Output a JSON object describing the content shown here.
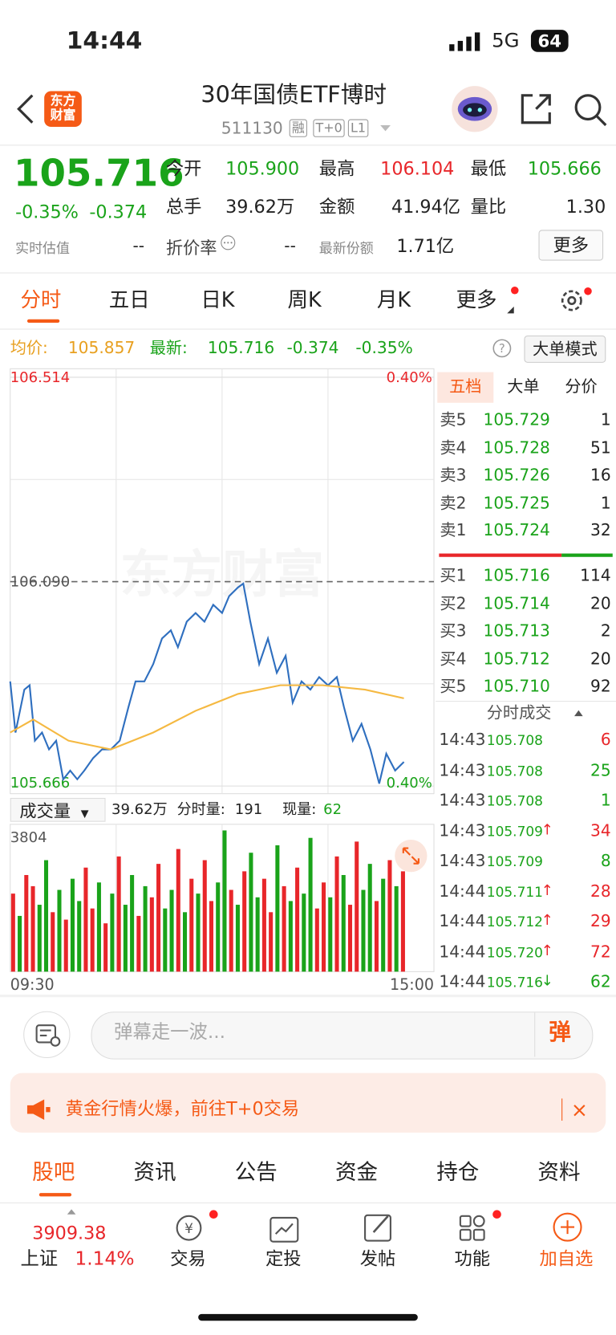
{
  "status_bar": {
    "time": "14:44",
    "network": "5G",
    "battery": "64"
  },
  "header": {
    "logo": [
      "东方",
      "财富"
    ],
    "title": "30年国债ETF博时",
    "code": "511130",
    "tags": [
      "融",
      "T+0",
      "L1"
    ]
  },
  "quote": {
    "price": "105.716",
    "change_pct": "-0.35%",
    "change": "-0.374",
    "fields": [
      {
        "label": "今开",
        "value": "105.900"
      },
      {
        "label": "最高",
        "value": "106.104"
      },
      {
        "label": "最低",
        "value": "105.666"
      },
      {
        "label": "总手",
        "value": "39.62万"
      },
      {
        "label": "金额",
        "value": "41.94亿"
      },
      {
        "label": "量比",
        "value": "1.30"
      },
      {
        "label": "实时估值",
        "value": "--"
      },
      {
        "label": "折价率",
        "value": "--"
      },
      {
        "label": "最新份额",
        "value": "1.71亿"
      }
    ],
    "more": "更多"
  },
  "tabs": [
    "分时",
    "五日",
    "日K",
    "周K",
    "月K",
    "更多"
  ],
  "info_line": {
    "avg_label": "均价:",
    "avg": "105.857",
    "latest_label": "最新:",
    "latest": "105.716",
    "change": "-0.374",
    "pct": "-0.35%",
    "mode": "大单模式"
  },
  "volume_header": {
    "label": "成交量",
    "total": "39.62万",
    "minute_label": "分时量:",
    "minute": "191",
    "current_label": "现量:",
    "current": "62"
  },
  "chart_data": [
    {
      "type": "line",
      "watermark": "东方财富",
      "xlim": [
        0,
        240
      ],
      "xticks": [
        {
          "value": 0,
          "label": "09:30"
        },
        {
          "value": 240,
          "label": "15:00"
        }
      ],
      "ylim": [
        105.666,
        106.514
      ],
      "yticks": [
        106.514,
        {
          "value": 106.09,
          "label": "106.090"
        },
        105.666
      ],
      "y2lim": [
        -0.4,
        0.4
      ],
      "y2ticks": [
        {
          "value": 0.4,
          "label": "0.40%"
        },
        {
          "value": -0.4,
          "label": "0.40%"
        }
      ],
      "grid": true,
      "series": [
        {
          "color": "#2f6fbf",
          "x": [
            0,
            3,
            8,
            11,
            14,
            18,
            22,
            26,
            30,
            34,
            38,
            42,
            47,
            52,
            57,
            62,
            67,
            71,
            76,
            81,
            86,
            91,
            95,
            100,
            105,
            110,
            115,
            120,
            124,
            129,
            132,
            136,
            141,
            146,
            151,
            156,
            160,
            165,
            170,
            175,
            180,
            185,
            189,
            194,
            199,
            204,
            209,
            213,
            218,
            223
          ],
          "values": [
            105.883,
            105.777,
            105.866,
            105.875,
            105.76,
            105.777,
            105.742,
            105.76,
            105.68,
            105.698,
            105.68,
            105.698,
            105.724,
            105.742,
            105.742,
            105.76,
            105.83,
            105.883,
            105.883,
            105.919,
            105.972,
            105.989,
            105.954,
            106.007,
            106.025,
            106.007,
            106.042,
            106.025,
            106.06,
            106.078,
            106.086,
            106.007,
            105.919,
            105.972,
            105.901,
            105.936,
            105.839,
            105.883,
            105.866,
            105.892,
            105.875,
            105.892,
            105.83,
            105.76,
            105.795,
            105.742,
            105.671,
            105.733,
            105.698,
            105.716
          ]
        },
        {
          "color": "#f5b942",
          "x": [
            0,
            13,
            33,
            57,
            81,
            105,
            129,
            153,
            177,
            201,
            223
          ],
          "values": [
            105.777,
            105.804,
            105.76,
            105.742,
            105.777,
            105.822,
            105.857,
            105.875,
            105.875,
            105.866,
            105.848
          ]
        }
      ]
    },
    {
      "type": "bar",
      "ylim": [
        0,
        3804
      ],
      "yticks": [
        3804
      ],
      "values": [
        2100,
        1500,
        2600,
        2300,
        1800,
        3000,
        1600,
        2200,
        1400,
        2500,
        1900,
        2800,
        1700,
        2400,
        1300,
        2100,
        3100,
        1800,
        2600,
        1500,
        2300,
        2000,
        2900,
        1700,
        2200,
        3300,
        1600,
        2500,
        2100,
        3000,
        1900,
        2400,
        3800,
        2200,
        1800,
        2700,
        3200,
        2000,
        2500,
        1600,
        3400,
        2300,
        1900,
        2800,
        2100,
        3600,
        1700,
        2400,
        2000,
        3100,
        2600,
        1800,
        3500,
        2200,
        2900,
        1900,
        2500,
        3000,
        2300,
        2700
      ],
      "colors": [
        "#e8262a",
        "#1aa31a",
        "#e8262a",
        "#e8262a",
        "#1aa31a",
        "#1aa31a",
        "#e8262a",
        "#1aa31a",
        "#e8262a",
        "#1aa31a",
        "#1aa31a",
        "#e8262a",
        "#e8262a",
        "#1aa31a",
        "#e8262a",
        "#1aa31a",
        "#e8262a",
        "#1aa31a",
        "#1aa31a",
        "#e8262a",
        "#1aa31a",
        "#e8262a",
        "#e8262a",
        "#1aa31a",
        "#1aa31a",
        "#e8262a",
        "#1aa31a",
        "#e8262a",
        "#1aa31a",
        "#e8262a",
        "#e8262a",
        "#1aa31a",
        "#1aa31a",
        "#e8262a",
        "#1aa31a",
        "#e8262a",
        "#1aa31a",
        "#1aa31a",
        "#e8262a",
        "#e8262a",
        "#1aa31a",
        "#e8262a",
        "#1aa31a",
        "#e8262a",
        "#1aa31a",
        "#1aa31a",
        "#e8262a",
        "#e8262a",
        "#1aa31a",
        "#e8262a",
        "#1aa31a",
        "#e8262a",
        "#e8262a",
        "#1aa31a",
        "#1aa31a",
        "#e8262a",
        "#1aa31a",
        "#e8262a",
        "#1aa31a",
        "#e8262a"
      ]
    }
  ],
  "order_book": {
    "tabs": [
      "五档",
      "大单",
      "分价"
    ],
    "asks": [
      {
        "label": "卖5",
        "price": "105.729",
        "vol": "1"
      },
      {
        "label": "卖4",
        "price": "105.728",
        "vol": "51"
      },
      {
        "label": "卖3",
        "price": "105.726",
        "vol": "16"
      },
      {
        "label": "卖2",
        "price": "105.725",
        "vol": "1"
      },
      {
        "label": "卖1",
        "price": "105.724",
        "vol": "32"
      }
    ],
    "bids": [
      {
        "label": "买1",
        "price": "105.716",
        "vol": "114"
      },
      {
        "label": "买2",
        "price": "105.714",
        "vol": "20"
      },
      {
        "label": "买3",
        "price": "105.713",
        "vol": "2"
      },
      {
        "label": "买4",
        "price": "105.712",
        "vol": "20"
      },
      {
        "label": "买5",
        "price": "105.710",
        "vol": "92"
      }
    ]
  },
  "trades": {
    "title": "分时成交",
    "rows": [
      {
        "time": "14:43",
        "price": "105.708",
        "vol": "6",
        "color": "#e8262a"
      },
      {
        "time": "14:43",
        "price": "105.708",
        "vol": "25",
        "color": "#1aa31a"
      },
      {
        "time": "14:43",
        "price": "105.708",
        "vol": "1",
        "color": "#1aa31a"
      },
      {
        "time": "14:43",
        "price": "105.709",
        "arrow": "↑",
        "vol": "34",
        "color": "#e8262a"
      },
      {
        "time": "14:43",
        "price": "105.709",
        "vol": "8",
        "color": "#1aa31a"
      },
      {
        "time": "14:44",
        "price": "105.711",
        "arrow": "↑",
        "vol": "28",
        "color": "#e8262a"
      },
      {
        "time": "14:44",
        "price": "105.712",
        "arrow": "↑",
        "vol": "29",
        "color": "#e8262a"
      },
      {
        "time": "14:44",
        "price": "105.720",
        "arrow": "↑",
        "vol": "72",
        "color": "#e8262a"
      },
      {
        "time": "14:44",
        "price": "105.716",
        "arrow": "↓",
        "vol": "62",
        "color": "#1aa31a"
      }
    ]
  },
  "comment": {
    "placeholder": "弹幕走一波...",
    "button": "弹"
  },
  "banner": {
    "text": "黄金行情火爆，前往T+0交易"
  },
  "section_tabs": [
    "股吧",
    "资讯",
    "公告",
    "资金",
    "持仓",
    "资料"
  ],
  "bottom_nav": {
    "index_value": "3909.38",
    "index_name": "上证",
    "index_pct": "1.14%",
    "items": [
      "交易",
      "定投",
      "发帖",
      "功能",
      "加自选"
    ]
  }
}
